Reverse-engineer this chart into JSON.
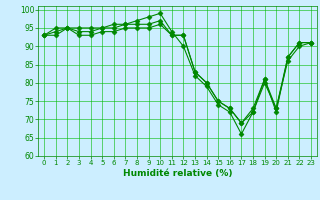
{
  "title": "",
  "xlabel": "Humidité relative (%)",
  "ylabel": "",
  "background_color": "#cceeff",
  "grid_color": "#00bb00",
  "line_color": "#008800",
  "xlim": [
    -0.5,
    23.5
  ],
  "ylim": [
    60,
    101
  ],
  "yticks": [
    60,
    65,
    70,
    75,
    80,
    85,
    90,
    95,
    100
  ],
  "xticks": [
    0,
    1,
    2,
    3,
    4,
    5,
    6,
    7,
    8,
    9,
    10,
    11,
    12,
    13,
    14,
    15,
    16,
    17,
    18,
    19,
    20,
    21,
    22,
    23
  ],
  "series": [
    [
      93,
      95,
      95,
      95,
      95,
      95,
      96,
      96,
      97,
      98,
      99,
      94,
      90,
      82,
      79,
      74,
      72,
      66,
      72,
      81,
      72,
      87,
      91,
      91
    ],
    [
      93,
      94,
      95,
      94,
      94,
      95,
      95,
      96,
      96,
      96,
      97,
      93,
      93,
      83,
      80,
      75,
      73,
      69,
      73,
      81,
      73,
      87,
      91,
      91
    ],
    [
      93,
      93,
      95,
      93,
      93,
      94,
      94,
      95,
      95,
      95,
      96,
      93,
      93,
      83,
      80,
      75,
      73,
      69,
      72,
      80,
      73,
      86,
      90,
      91
    ]
  ]
}
